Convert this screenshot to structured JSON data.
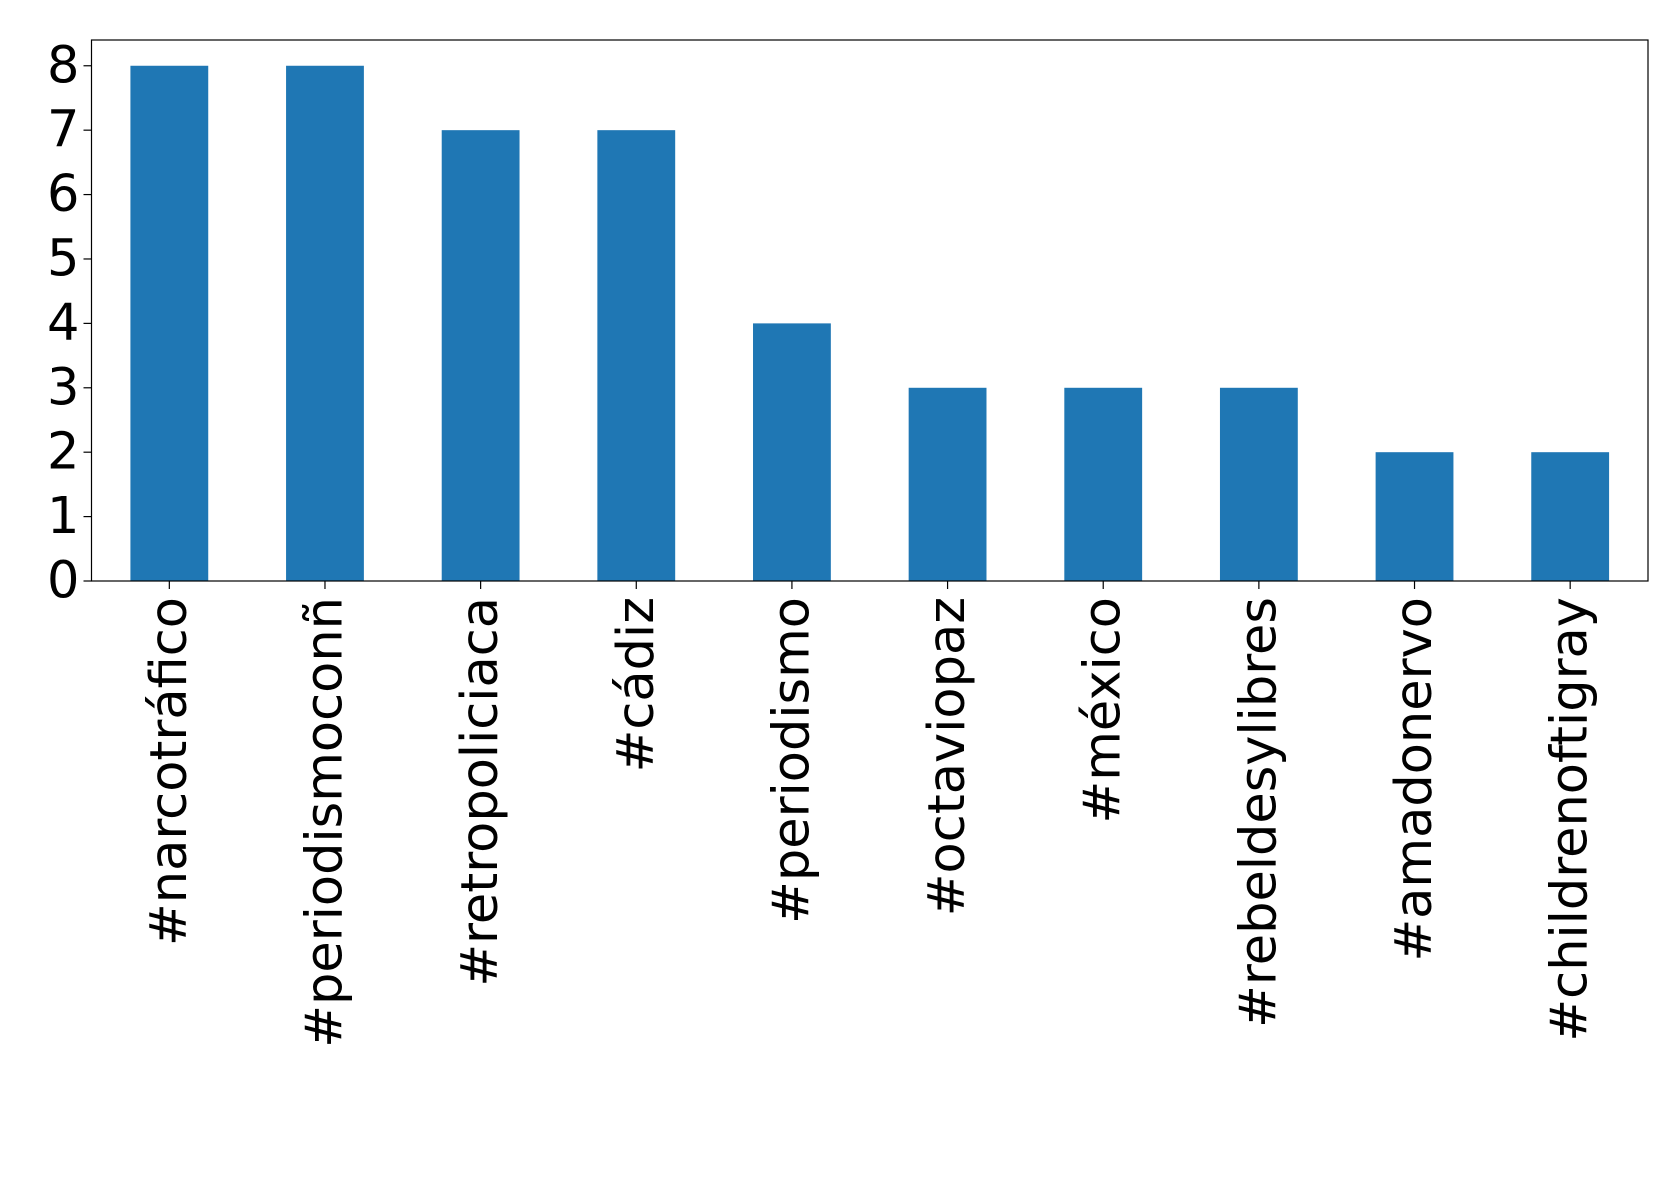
{
  "chart_data": {
    "type": "bar",
    "categories": [
      "#narcotráfico",
      "#periodismoconñ",
      "#retropoliciaca",
      "#cádiz",
      "#periodismo",
      "#octaviopaz",
      "#méxico",
      "#rebeldesylibres",
      "#amadonervo",
      "#childrenoftigray"
    ],
    "values": [
      8,
      8,
      7,
      7,
      4,
      3,
      3,
      3,
      2,
      2
    ],
    "color": "#1f77b4",
    "ylim": [
      0,
      8.4
    ],
    "yticks": [
      0,
      1,
      2,
      3,
      4,
      5,
      6,
      7,
      8
    ],
    "grid": false
  }
}
